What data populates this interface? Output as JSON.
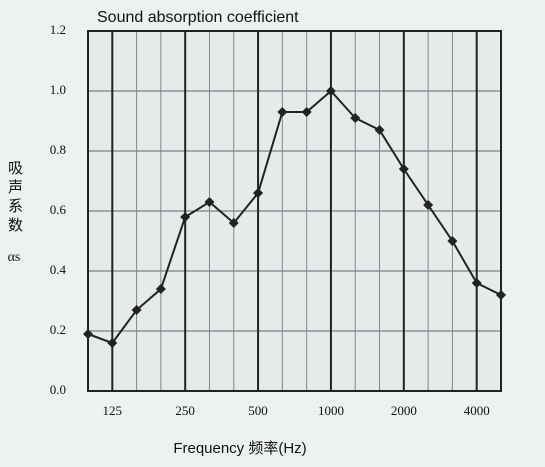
{
  "chart_data": {
    "type": "line",
    "title": "Sound absorption coefficient",
    "x_label": "Frequency 频率(Hz)",
    "y_label": "吸声系数",
    "y_label_symbol": "αs",
    "categories": [
      null,
      "125",
      null,
      null,
      "250",
      null,
      null,
      "500",
      null,
      null,
      "1000",
      null,
      null,
      "2000",
      null,
      null,
      "4000",
      null
    ],
    "series": [
      {
        "name": "Sound absorption coefficient",
        "color": "#222222",
        "values": [
          0.19,
          0.16,
          0.27,
          0.34,
          0.58,
          0.63,
          0.56,
          0.66,
          0.93,
          0.93,
          1.0,
          0.91,
          0.87,
          0.74,
          0.62,
          0.5,
          0.36,
          0.32
        ]
      }
    ],
    "ylim": [
      0,
      1.2
    ],
    "yticks": [
      {
        "value": 0,
        "label": "0.0"
      },
      0.2,
      0.4,
      0.6,
      0.8,
      {
        "value": 1,
        "label": "1.0"
      },
      1.2
    ],
    "grid": true
  }
}
